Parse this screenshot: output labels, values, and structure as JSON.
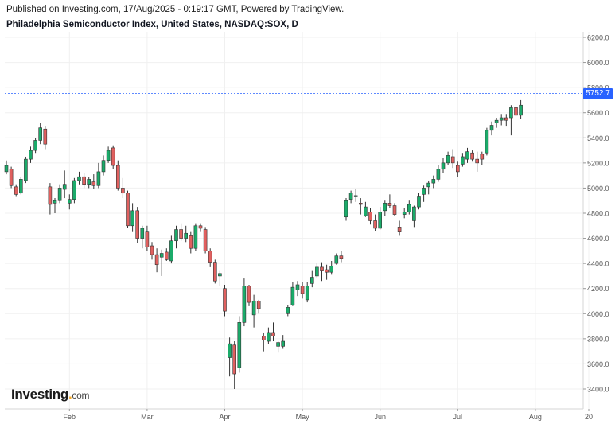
{
  "header": {
    "published": "Published on Investing.com, 17/Aug/2025 - 0:19:17 GMT, Powered by TradingView.",
    "symbol_title": "Philadelphia Semiconductor Index, United States, NASDAQ:SOX, D"
  },
  "branding": {
    "logo_main": "Investing",
    "logo_suffix": ".com"
  },
  "last_price": "5752.7",
  "colors": {
    "up": "#26a69a",
    "down": "#ef5350",
    "up_fill": "#1bab6a",
    "down_fill": "#e0605f",
    "wick": "#333333",
    "grid": "#f0f0f0",
    "price_line": "#2962ff"
  },
  "chart_data": {
    "type": "candlestick",
    "title": "Philadelphia Semiconductor Index, United States, NASDAQ:SOX, D",
    "ylim": [
      3300,
      6250
    ],
    "y_ticks": [
      3400,
      3600,
      3800,
      4000,
      4200,
      4400,
      4600,
      4800,
      5000,
      5200,
      5400,
      5600,
      5800,
      6000,
      6200
    ],
    "x_ticks": [
      {
        "label": "Feb",
        "index": 13
      },
      {
        "label": "Mar",
        "index": 29
      },
      {
        "label": "Apr",
        "index": 45
      },
      {
        "label": "May",
        "index": 61
      },
      {
        "label": "Jun",
        "index": 77
      },
      {
        "label": "Jul",
        "index": 93
      },
      {
        "label": "Aug",
        "index": 109
      },
      {
        "label": "20",
        "index": 120
      }
    ],
    "last_value": 5752.7,
    "candles": [
      [
        5130,
        5220,
        5110,
        5180
      ],
      [
        5150,
        5170,
        5000,
        5020
      ],
      [
        5010,
        5030,
        4930,
        4950
      ],
      [
        4960,
        5090,
        4950,
        5070
      ],
      [
        5060,
        5250,
        5040,
        5230
      ],
      [
        5230,
        5330,
        5200,
        5300
      ],
      [
        5300,
        5400,
        5280,
        5380
      ],
      [
        5380,
        5520,
        5350,
        5480
      ],
      [
        5470,
        5490,
        5310,
        5350
      ],
      [
        5010,
        5040,
        4790,
        4870
      ],
      [
        4880,
        4920,
        4800,
        4900
      ],
      [
        4900,
        5030,
        4880,
        5000
      ],
      [
        4990,
        5140,
        4920,
        5030
      ],
      [
        4880,
        4950,
        4830,
        4910
      ],
      [
        4910,
        5080,
        4880,
        5060
      ],
      [
        5060,
        5130,
        5030,
        5090
      ],
      [
        5090,
        5120,
        5000,
        5030
      ],
      [
        5030,
        5090,
        5000,
        5070
      ],
      [
        5050,
        5110,
        4990,
        5020
      ],
      [
        5020,
        5200,
        5000,
        5130
      ],
      [
        5130,
        5260,
        5100,
        5220
      ],
      [
        5220,
        5330,
        5200,
        5300
      ],
      [
        5320,
        5340,
        5150,
        5180
      ],
      [
        5180,
        5220,
        4980,
        5000
      ],
      [
        5000,
        5080,
        4920,
        4960
      ],
      [
        4960,
        4980,
        4680,
        4700
      ],
      [
        4700,
        4880,
        4650,
        4820
      ],
      [
        4820,
        4850,
        4560,
        4600
      ],
      [
        4600,
        4700,
        4520,
        4680
      ],
      [
        4650,
        4700,
        4500,
        4530
      ],
      [
        4540,
        4570,
        4430,
        4470
      ],
      [
        4470,
        4520,
        4330,
        4390
      ],
      [
        4450,
        4510,
        4300,
        4480
      ],
      [
        4490,
        4520,
        4420,
        4430
      ],
      [
        4420,
        4620,
        4400,
        4580
      ],
      [
        4580,
        4700,
        4520,
        4670
      ],
      [
        4670,
        4720,
        4580,
        4600
      ],
      [
        4600,
        4700,
        4570,
        4640
      ],
      [
        4620,
        4650,
        4480,
        4520
      ],
      [
        4520,
        4720,
        4500,
        4700
      ],
      [
        4700,
        4720,
        4650,
        4680
      ],
      [
        4670,
        4690,
        4480,
        4500
      ],
      [
        4500,
        4520,
        4370,
        4410
      ],
      [
        4410,
        4430,
        4240,
        4260
      ],
      [
        4300,
        4340,
        4220,
        4320
      ],
      [
        4200,
        4230,
        3980,
        4020
      ],
      [
        3650,
        3810,
        3500,
        3760
      ],
      [
        3750,
        3780,
        3400,
        3520
      ],
      [
        3570,
        3980,
        3530,
        3930
      ],
      [
        3930,
        4280,
        3900,
        4220
      ],
      [
        4220,
        4230,
        4060,
        4090
      ],
      [
        3990,
        4150,
        3890,
        4100
      ],
      [
        4100,
        4110,
        4000,
        4040
      ],
      [
        3820,
        3850,
        3700,
        3790
      ],
      [
        3780,
        3890,
        3760,
        3850
      ],
      [
        3850,
        3930,
        3780,
        3820
      ],
      [
        3740,
        3780,
        3690,
        3770
      ],
      [
        3740,
        3830,
        3720,
        3780
      ],
      [
        4000,
        4070,
        3980,
        4050
      ],
      [
        4070,
        4250,
        4060,
        4210
      ],
      [
        4190,
        4260,
        4140,
        4230
      ],
      [
        4220,
        4250,
        4120,
        4160
      ],
      [
        4110,
        4250,
        4090,
        4220
      ],
      [
        4240,
        4340,
        4210,
        4290
      ],
      [
        4300,
        4400,
        4280,
        4370
      ],
      [
        4370,
        4410,
        4260,
        4340
      ],
      [
        4350,
        4390,
        4270,
        4330
      ],
      [
        4330,
        4420,
        4310,
        4380
      ],
      [
        4400,
        4480,
        4390,
        4460
      ],
      [
        4460,
        4500,
        4410,
        4440
      ],
      [
        4770,
        4920,
        4740,
        4900
      ],
      [
        4910,
        4980,
        4880,
        4960
      ],
      [
        4930,
        4990,
        4890,
        4940
      ],
      [
        4880,
        4920,
        4790,
        4870
      ],
      [
        4780,
        4890,
        4770,
        4850
      ],
      [
        4810,
        4840,
        4710,
        4740
      ],
      [
        4740,
        4790,
        4660,
        4680
      ],
      [
        4680,
        4850,
        4670,
        4810
      ],
      [
        4820,
        4900,
        4780,
        4880
      ],
      [
        4880,
        4950,
        4840,
        4860
      ],
      [
        4860,
        4880,
        4780,
        4790
      ],
      [
        4690,
        4740,
        4620,
        4650
      ],
      [
        4790,
        4840,
        4760,
        4810
      ],
      [
        4810,
        4900,
        4790,
        4870
      ],
      [
        4740,
        4860,
        4690,
        4850
      ],
      [
        4850,
        4960,
        4830,
        4930
      ],
      [
        4950,
        5020,
        4890,
        5000
      ],
      [
        5010,
        5060,
        4950,
        5040
      ],
      [
        5040,
        5100,
        5000,
        5070
      ],
      [
        5070,
        5180,
        5050,
        5150
      ],
      [
        5150,
        5240,
        5120,
        5200
      ],
      [
        5200,
        5290,
        5180,
        5260
      ],
      [
        5250,
        5310,
        5160,
        5200
      ],
      [
        5180,
        5210,
        5090,
        5130
      ],
      [
        5190,
        5280,
        5170,
        5250
      ],
      [
        5230,
        5320,
        5200,
        5290
      ],
      [
        5280,
        5300,
        5210,
        5230
      ],
      [
        5230,
        5290,
        5130,
        5200
      ],
      [
        5270,
        5290,
        5180,
        5230
      ],
      [
        5280,
        5480,
        5260,
        5460
      ],
      [
        5460,
        5530,
        5420,
        5500
      ],
      [
        5520,
        5560,
        5480,
        5540
      ],
      [
        5540,
        5590,
        5500,
        5560
      ],
      [
        5560,
        5590,
        5490,
        5540
      ],
      [
        5560,
        5660,
        5420,
        5640
      ],
      [
        5640,
        5700,
        5540,
        5580
      ],
      [
        5580,
        5700,
        5550,
        5660
      ]
    ]
  }
}
